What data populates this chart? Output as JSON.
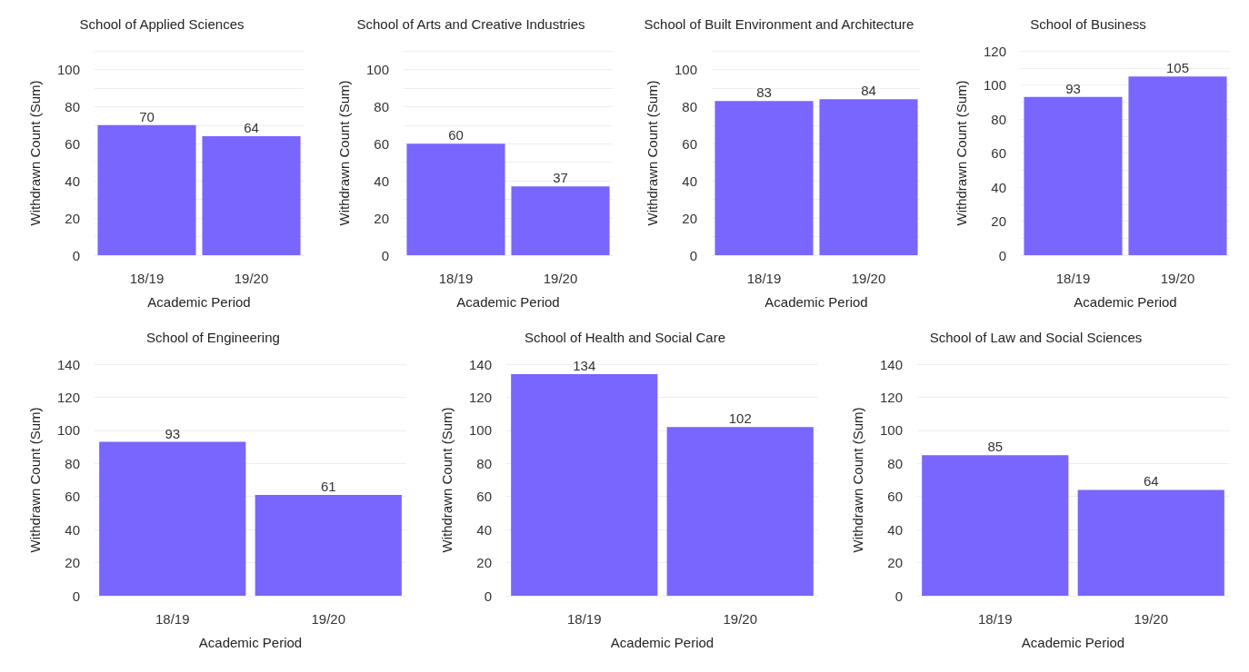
{
  "chart_data": [
    {
      "type": "bar",
      "title": "School of Applied Sciences",
      "xlabel": "Academic Period",
      "ylabel": "Withdrawn Count (Sum)",
      "categories": [
        "18/19",
        "19/20"
      ],
      "values": [
        70,
        64
      ],
      "color": "#7866ff",
      "ylim": [
        0,
        110
      ],
      "yticks": [
        0,
        {
          "value": 10,
          "label": null
        },
        20,
        {
          "value": 30,
          "label": null
        },
        40,
        {
          "value": 50,
          "label": null
        },
        60,
        {
          "value": 70,
          "label": null
        },
        80,
        {
          "value": 90,
          "label": null
        },
        100,
        {
          "value": 110,
          "label": null
        }
      ],
      "grid": "y",
      "data_labels": true
    },
    {
      "type": "bar",
      "title": "School of Arts and Creative Industries",
      "xlabel": "Academic Period",
      "ylabel": "Withdrawn Count (Sum)",
      "categories": [
        "18/19",
        "19/20"
      ],
      "values": [
        60,
        37
      ],
      "color": "#7866ff",
      "ylim": [
        0,
        110
      ],
      "yticks": [
        0,
        {
          "value": 10,
          "label": null
        },
        20,
        {
          "value": 30,
          "label": null
        },
        40,
        {
          "value": 50,
          "label": null
        },
        60,
        {
          "value": 70,
          "label": null
        },
        80,
        {
          "value": 90,
          "label": null
        },
        100,
        {
          "value": 110,
          "label": null
        }
      ],
      "grid": "y",
      "data_labels": true
    },
    {
      "type": "bar",
      "title": "School of Built Environment and Architecture",
      "xlabel": "Academic Period",
      "ylabel": "Withdrawn Count (Sum)",
      "categories": [
        "18/19",
        "19/20"
      ],
      "values": [
        83,
        84
      ],
      "color": "#7866ff",
      "ylim": [
        0,
        110
      ],
      "yticks": [
        0,
        {
          "value": 10,
          "label": null
        },
        20,
        {
          "value": 30,
          "label": null
        },
        40,
        {
          "value": 50,
          "label": null
        },
        60,
        {
          "value": 70,
          "label": null
        },
        80,
        {
          "value": 90,
          "label": null
        },
        100,
        {
          "value": 110,
          "label": null
        }
      ],
      "grid": "y",
      "data_labels": true
    },
    {
      "type": "bar",
      "title": "School of Business",
      "xlabel": "Academic Period",
      "ylabel": "Withdrawn Count (Sum)",
      "categories": [
        "18/19",
        "19/20"
      ],
      "values": [
        93,
        105
      ],
      "color": "#7866ff",
      "ylim": [
        0,
        120
      ],
      "yticks": [
        0,
        {
          "value": 10,
          "label": null
        },
        20,
        {
          "value": 30,
          "label": null
        },
        40,
        {
          "value": 50,
          "label": null
        },
        60,
        {
          "value": 70,
          "label": null
        },
        80,
        {
          "value": 90,
          "label": null
        },
        100,
        {
          "value": 110,
          "label": null
        },
        120
      ],
      "grid": "y",
      "data_labels": true
    },
    {
      "type": "bar",
      "title": "School of Engineering",
      "xlabel": "Academic Period",
      "ylabel": "Withdrawn Count (Sum)",
      "categories": [
        "18/19",
        "19/20"
      ],
      "values": [
        93,
        61
      ],
      "color": "#7866ff",
      "ylim": [
        0,
        140
      ],
      "yticks": [
        0,
        20,
        40,
        60,
        80,
        100,
        120,
        140
      ],
      "grid": "y",
      "data_labels": true
    },
    {
      "type": "bar",
      "title": "School of Health and Social Care",
      "xlabel": "Academic Period",
      "ylabel": "Withdrawn Count (Sum)",
      "categories": [
        "18/19",
        "19/20"
      ],
      "values": [
        134,
        102
      ],
      "color": "#7866ff",
      "ylim": [
        0,
        140
      ],
      "yticks": [
        0,
        20,
        40,
        60,
        80,
        100,
        120,
        140
      ],
      "grid": "y",
      "data_labels": true
    },
    {
      "type": "bar",
      "title": "School of Law and Social Sciences",
      "xlabel": "Academic Period",
      "ylabel": "Withdrawn Count (Sum)",
      "categories": [
        "18/19",
        "19/20"
      ],
      "values": [
        85,
        64
      ],
      "color": "#7866ff",
      "ylim": [
        0,
        140
      ],
      "yticks": [
        0,
        20,
        40,
        60,
        80,
        100,
        120,
        140
      ],
      "grid": "y",
      "data_labels": true
    }
  ]
}
